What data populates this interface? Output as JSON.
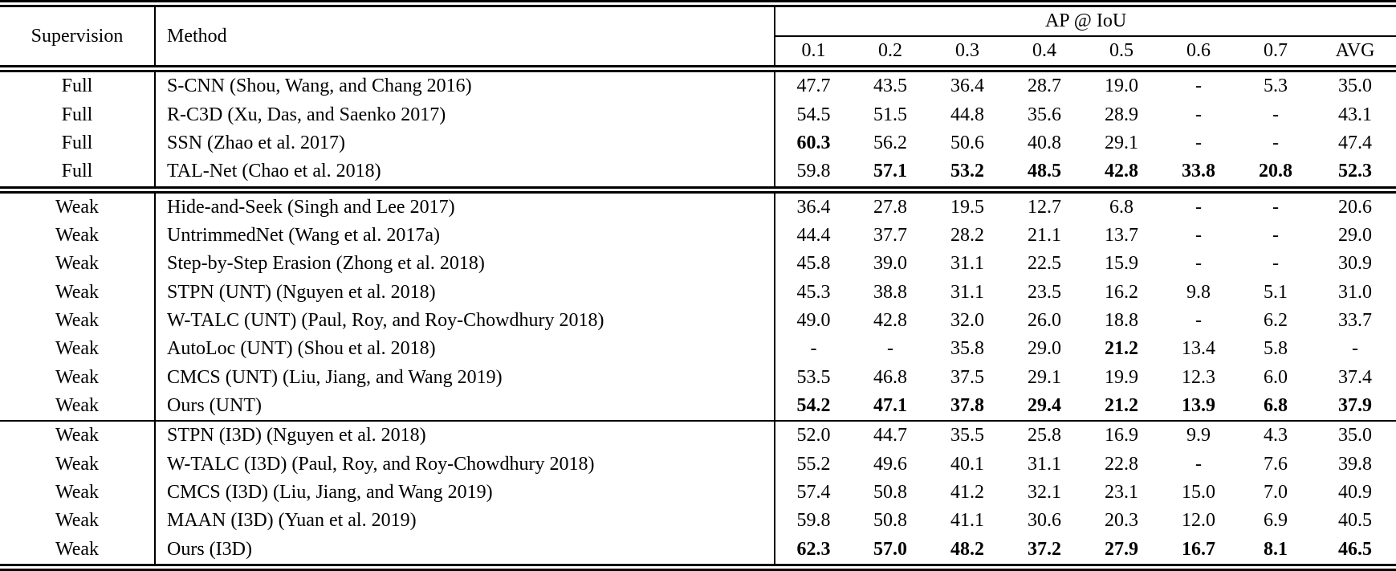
{
  "table": {
    "header": {
      "supervision": "Supervision",
      "method": "Method",
      "group": "AP @ IoU",
      "iou_columns": [
        "0.1",
        "0.2",
        "0.3",
        "0.4",
        "0.5",
        "0.6",
        "0.7",
        "AVG"
      ]
    },
    "sections": [
      {
        "name": "full-supervision",
        "rows": [
          {
            "supervision": "Full",
            "method": "S-CNN (Shou, Wang, and Chang 2016)",
            "values": [
              "47.7",
              "43.5",
              "36.4",
              "28.7",
              "19.0",
              "-",
              "5.3",
              "35.0"
            ],
            "bold": []
          },
          {
            "supervision": "Full",
            "method": "R-C3D (Xu, Das, and Saenko 2017)",
            "values": [
              "54.5",
              "51.5",
              "44.8",
              "35.6",
              "28.9",
              "-",
              "-",
              "43.1"
            ],
            "bold": []
          },
          {
            "supervision": "Full",
            "method": "SSN (Zhao et al. 2017)",
            "values": [
              "60.3",
              "56.2",
              "50.6",
              "40.8",
              "29.1",
              "-",
              "-",
              "47.4"
            ],
            "bold": [
              0
            ]
          },
          {
            "supervision": "Full",
            "method": "TAL-Net (Chao et al. 2018)",
            "values": [
              "59.8",
              "57.1",
              "53.2",
              "48.5",
              "42.8",
              "33.8",
              "20.8",
              "52.3"
            ],
            "bold": [
              1,
              2,
              3,
              4,
              5,
              6,
              7
            ]
          }
        ]
      },
      {
        "name": "weak-supervision-unt",
        "rows": [
          {
            "supervision": "Weak",
            "method": "Hide-and-Seek (Singh and Lee 2017)",
            "values": [
              "36.4",
              "27.8",
              "19.5",
              "12.7",
              "6.8",
              "-",
              "-",
              "20.6"
            ],
            "bold": []
          },
          {
            "supervision": "Weak",
            "method": "UntrimmedNet (Wang et al. 2017a)",
            "values": [
              "44.4",
              "37.7",
              "28.2",
              "21.1",
              "13.7",
              "-",
              "-",
              "29.0"
            ],
            "bold": []
          },
          {
            "supervision": "Weak",
            "method": "Step-by-Step Erasion (Zhong et al. 2018)",
            "values": [
              "45.8",
              "39.0",
              "31.1",
              "22.5",
              "15.9",
              "-",
              "-",
              "30.9"
            ],
            "bold": []
          },
          {
            "supervision": "Weak",
            "method": "STPN (UNT) (Nguyen et al. 2018)",
            "values": [
              "45.3",
              "38.8",
              "31.1",
              "23.5",
              "16.2",
              "9.8",
              "5.1",
              "31.0"
            ],
            "bold": []
          },
          {
            "supervision": "Weak",
            "method": "W-TALC (UNT) (Paul, Roy, and Roy-Chowdhury 2018)",
            "values": [
              "49.0",
              "42.8",
              "32.0",
              "26.0",
              "18.8",
              "-",
              "6.2",
              "33.7"
            ],
            "bold": []
          },
          {
            "supervision": "Weak",
            "method": "AutoLoc (UNT) (Shou et al. 2018)",
            "values": [
              "-",
              "-",
              "35.8",
              "29.0",
              "21.2",
              "13.4",
              "5.8",
              "-"
            ],
            "bold": [
              4
            ]
          },
          {
            "supervision": "Weak",
            "method": "CMCS (UNT) (Liu, Jiang, and Wang 2019)",
            "values": [
              "53.5",
              "46.8",
              "37.5",
              "29.1",
              "19.9",
              "12.3",
              "6.0",
              "37.4"
            ],
            "bold": []
          },
          {
            "supervision": "Weak",
            "method": "Ours (UNT)",
            "values": [
              "54.2",
              "47.1",
              "37.8",
              "29.4",
              "21.2",
              "13.9",
              "6.8",
              "37.9"
            ],
            "bold": [
              0,
              1,
              2,
              3,
              4,
              5,
              6,
              7
            ]
          }
        ]
      },
      {
        "name": "weak-supervision-i3d",
        "rows": [
          {
            "supervision": "Weak",
            "method": "STPN (I3D) (Nguyen et al. 2018)",
            "values": [
              "52.0",
              "44.7",
              "35.5",
              "25.8",
              "16.9",
              "9.9",
              "4.3",
              "35.0"
            ],
            "bold": []
          },
          {
            "supervision": "Weak",
            "method": "W-TALC (I3D) (Paul, Roy, and Roy-Chowdhury 2018)",
            "values": [
              "55.2",
              "49.6",
              "40.1",
              "31.1",
              "22.8",
              "-",
              "7.6",
              "39.8"
            ],
            "bold": []
          },
          {
            "supervision": "Weak",
            "method": "CMCS (I3D) (Liu, Jiang, and Wang 2019)",
            "values": [
              "57.4",
              "50.8",
              "41.2",
              "32.1",
              "23.1",
              "15.0",
              "7.0",
              "40.9"
            ],
            "bold": []
          },
          {
            "supervision": "Weak",
            "method": "MAAN (I3D) (Yuan et al. 2019)",
            "values": [
              "59.8",
              "50.8",
              "41.1",
              "30.6",
              "20.3",
              "12.0",
              "6.9",
              "40.5"
            ],
            "bold": []
          },
          {
            "supervision": "Weak",
            "method": "Ours (I3D)",
            "values": [
              "62.3",
              "57.0",
              "48.2",
              "37.2",
              "27.9",
              "16.7",
              "8.1",
              "46.5"
            ],
            "bold": [
              0,
              1,
              2,
              3,
              4,
              5,
              6,
              7
            ]
          }
        ]
      }
    ]
  }
}
